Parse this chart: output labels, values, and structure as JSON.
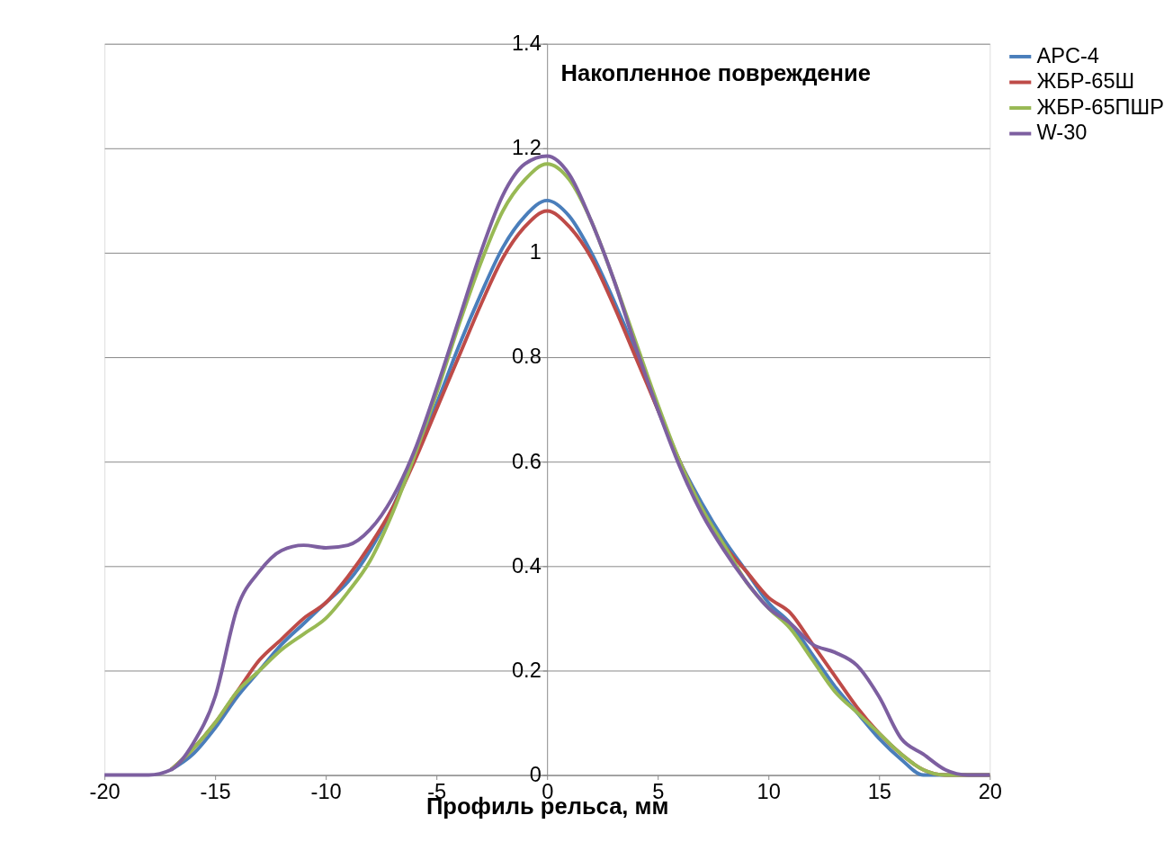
{
  "chart_data": {
    "type": "line",
    "xlabel": "Профиль рельса, мм",
    "ylabel": "Накопленное повреждение",
    "x": [
      -20,
      -18,
      -17,
      -16,
      -15,
      -14,
      -13,
      -12,
      -11,
      -10,
      -9,
      -8,
      -7,
      -6,
      -5,
      -4,
      -3,
      -2,
      -1,
      0,
      1,
      2,
      3,
      4,
      5,
      6,
      7,
      8,
      9,
      10,
      11,
      12,
      13,
      14,
      15,
      16,
      17,
      18,
      19,
      20
    ],
    "series": [
      {
        "name": "APC-4",
        "color": "#4a7ebb",
        "values": [
          null,
          null,
          0.01,
          0.04,
          0.09,
          0.15,
          0.2,
          0.25,
          0.29,
          0.33,
          0.37,
          0.43,
          0.51,
          0.61,
          0.71,
          0.82,
          0.92,
          1.01,
          1.07,
          1.1,
          1.07,
          1.0,
          0.91,
          0.81,
          0.7,
          0.6,
          0.52,
          0.45,
          0.39,
          0.33,
          0.29,
          0.23,
          0.17,
          0.12,
          0.07,
          0.03,
          0,
          0,
          0,
          0
        ]
      },
      {
        "name": "ЖБР-65Ш",
        "color": "#be4b48",
        "values": [
          null,
          null,
          0.01,
          0.05,
          0.1,
          0.16,
          0.22,
          0.26,
          0.3,
          0.33,
          0.38,
          0.44,
          0.51,
          0.6,
          0.7,
          0.8,
          0.9,
          0.99,
          1.05,
          1.08,
          1.05,
          0.99,
          0.9,
          0.8,
          0.7,
          0.6,
          0.51,
          0.44,
          0.39,
          0.34,
          0.31,
          0.25,
          0.19,
          0.13,
          0.08,
          0.04,
          0.01,
          0,
          0,
          0
        ]
      },
      {
        "name": "ЖБР-65ПШР",
        "color": "#98b954",
        "values": [
          null,
          null,
          0.01,
          0.05,
          0.1,
          0.16,
          0.2,
          0.24,
          0.27,
          0.3,
          0.35,
          0.41,
          0.5,
          0.61,
          0.73,
          0.86,
          0.98,
          1.08,
          1.14,
          1.17,
          1.14,
          1.06,
          0.95,
          0.83,
          0.71,
          0.6,
          0.51,
          0.44,
          0.37,
          0.32,
          0.28,
          0.22,
          0.16,
          0.12,
          0.08,
          0.04,
          0.01,
          0,
          0,
          0
        ]
      },
      {
        "name": "W-30",
        "color": "#7d5fa0",
        "values": [
          0,
          0,
          0.01,
          0.06,
          0.15,
          0.32,
          0.39,
          0.43,
          0.44,
          0.435,
          0.44,
          0.47,
          0.53,
          0.62,
          0.74,
          0.87,
          1.0,
          1.11,
          1.17,
          1.185,
          1.15,
          1.06,
          0.95,
          0.82,
          0.7,
          0.59,
          0.5,
          0.43,
          0.37,
          0.32,
          0.29,
          0.25,
          0.235,
          0.21,
          0.15,
          0.07,
          0.04,
          0.01,
          0,
          0
        ]
      }
    ],
    "xlim": [
      -20,
      20
    ],
    "xticks": [
      -20,
      -15,
      -10,
      -5,
      0,
      5,
      10,
      15,
      20
    ],
    "ylim": [
      0,
      1.4
    ],
    "yticks": [
      0,
      0.2,
      0.4,
      0.6,
      0.8,
      1,
      1.2,
      1.4
    ],
    "grid": "y",
    "legend": "right",
    "marker": "none",
    "line_style": "solid"
  }
}
